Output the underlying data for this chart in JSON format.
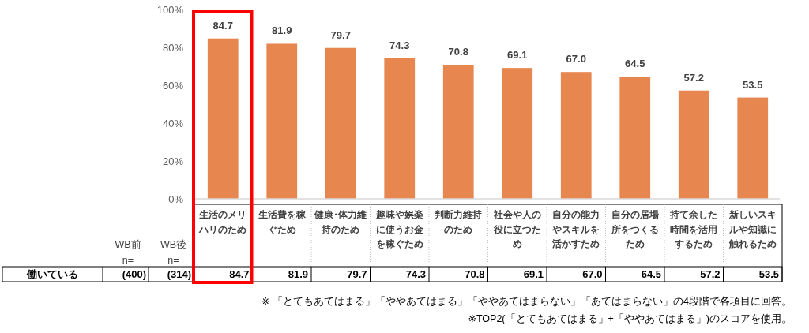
{
  "chart_data": {
    "type": "bar",
    "categories": [
      "生活のメリハリのため",
      "生活費を稼ぐため",
      "健康･体力維持のため",
      "趣味や娯楽に使うお金を稼ぐため",
      "判断力維持のため",
      "社会や人の役に立つため",
      "自分の能力やスキルを活かすため",
      "自分の居場所をつくるため",
      "持て余した時間を活用するため",
      "新しいスキルや知識に触れるため"
    ],
    "series": [
      {
        "name": "働いている",
        "color": "#e7864f",
        "values": [
          84.7,
          81.9,
          79.7,
          74.3,
          70.8,
          69.1,
          67.0,
          64.5,
          57.2,
          53.5
        ],
        "value_labels": [
          "84.7",
          "81.9",
          "79.7",
          "74.3",
          "70.8",
          "69.1",
          "67.0",
          "64.5",
          "57.2",
          "53.5"
        ]
      }
    ],
    "ylim": [
      0,
      100
    ],
    "yticks": [
      {
        "value": 0,
        "label": "0%"
      },
      {
        "value": 20,
        "label": "20%"
      },
      {
        "value": 40,
        "label": "40%"
      },
      {
        "value": 60,
        "label": "60%"
      },
      {
        "value": 80,
        "label": "80%"
      },
      {
        "value": 100,
        "label": "100%"
      }
    ],
    "annotations": [
      "WB前\nn=",
      "WB後\nn=",
      "(400)",
      "(314)",
      "※ 「とてもあてはまる」「ややあてはまる」「ややあてはまらない」「あてはまらない」の4段階で各項目に回答。",
      "※TOP2(「とてもあてはまる」+「ややあてはまる」)のスコアを使用。"
    ]
  }
}
